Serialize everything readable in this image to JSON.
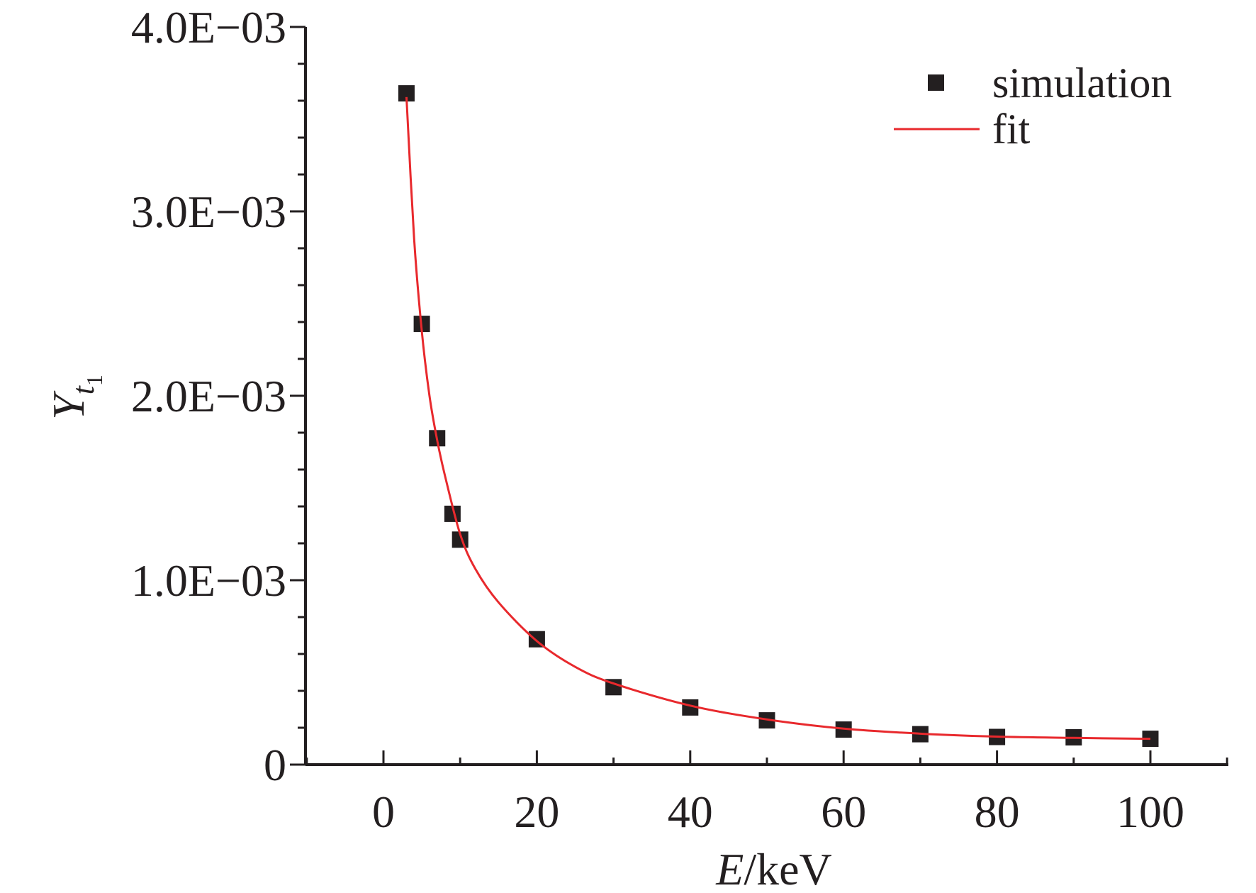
{
  "chart_data": {
    "type": "scatter",
    "title": "",
    "xlabel": {
      "var": "E",
      "unit": "/keV"
    },
    "ylabel": {
      "var": "Y",
      "sub": "t",
      "subsub": "1"
    },
    "xlim": [
      -10,
      110
    ],
    "ylim": [
      0,
      0.004
    ],
    "x_ticks": [
      0,
      20,
      40,
      60,
      80,
      100
    ],
    "x_tick_labels": [
      "0",
      "20",
      "40",
      "60",
      "80",
      "100"
    ],
    "y_ticks": [
      0,
      0.001,
      0.002,
      0.003,
      0.004
    ],
    "y_tick_labels": [
      "0",
      "1.0E−03",
      "2.0E−03",
      "3.0E−03",
      "4.0E−03"
    ],
    "grid": false,
    "legend_position": "top-right",
    "series": [
      {
        "name": "simulation",
        "kind": "scatter",
        "color": "#231f20",
        "marker": "square",
        "x": [
          3,
          5,
          7,
          9,
          10,
          20,
          30,
          40,
          50,
          60,
          70,
          80,
          90,
          100
        ],
        "y": [
          0.00364,
          0.00239,
          0.00177,
          0.00136,
          0.00122,
          0.00068,
          0.00042,
          0.00031,
          0.00024,
          0.00019,
          0.000165,
          0.00015,
          0.000148,
          0.00014
        ]
      },
      {
        "name": "fit",
        "kind": "line",
        "color": "#e8292d",
        "x": [
          3,
          4,
          5,
          6,
          7,
          8,
          10,
          12,
          15,
          20,
          25,
          30,
          40,
          50,
          60,
          70,
          80,
          90,
          100
        ],
        "y": [
          0.00362,
          0.00285,
          0.00235,
          0.002,
          0.00176,
          0.00157,
          0.00125,
          0.00106,
          0.00088,
          0.00067,
          0.00053,
          0.00044,
          0.00032,
          0.000245,
          0.000195,
          0.000168,
          0.000152,
          0.000145,
          0.00014
        ]
      }
    ]
  }
}
